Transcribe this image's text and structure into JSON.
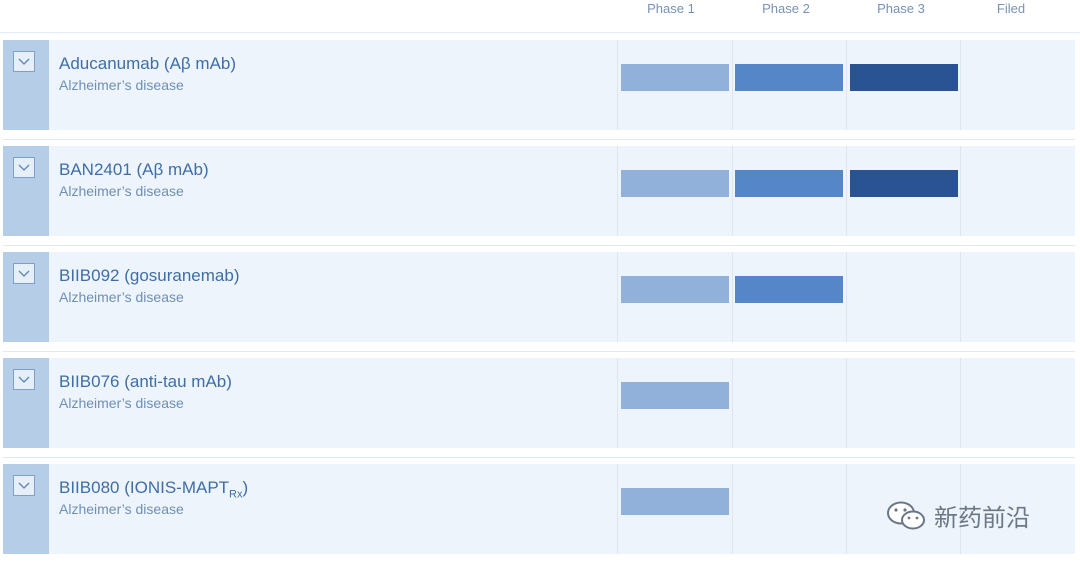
{
  "phases": [
    "Phase 1",
    "Phase 2",
    "Phase 3",
    "Filed"
  ],
  "colors": {
    "phase1": "#92b1da",
    "phase2": "#5587c8",
    "phase3": "#2a5394",
    "lead": "#b6cde8",
    "row_bg": "#eef4fb"
  },
  "pipeline": [
    {
      "name": "Aducanumab (Aβ mAb)",
      "name_sub": "",
      "disease": "Alzheimer’s disease",
      "phases_reached": 3
    },
    {
      "name": "BAN2401 (Aβ mAb)",
      "name_sub": "",
      "disease": "Alzheimer’s disease",
      "phases_reached": 3
    },
    {
      "name": "BIIB092 (gosuranemab)",
      "name_sub": "",
      "disease": "Alzheimer’s disease",
      "phases_reached": 2
    },
    {
      "name": "BIIB076 (anti-tau mAb)",
      "name_sub": "",
      "disease": "Alzheimer’s disease",
      "phases_reached": 1
    },
    {
      "name": "BIIB080 (IONIS-MAPT",
      "name_sub": "Rx",
      "name_suffix": ")",
      "disease": "Alzheimer’s disease",
      "phases_reached": 1
    }
  ],
  "expand_icon": "chevron-down-icon",
  "watermark": {
    "icon": "wechat-icon",
    "text": "新药前沿"
  }
}
